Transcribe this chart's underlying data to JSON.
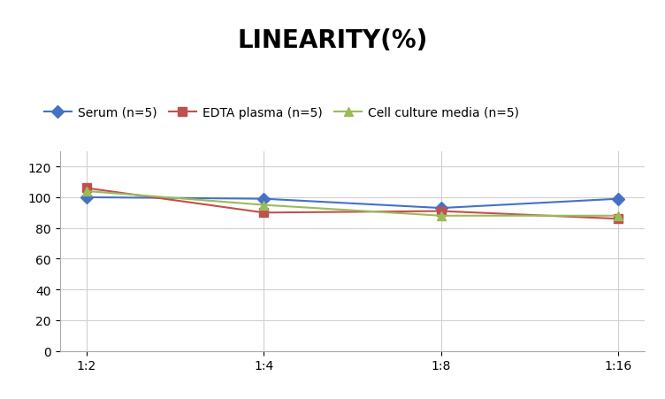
{
  "title": "LINEARITY(%)",
  "title_fontsize": 20,
  "title_fontweight": "bold",
  "x_labels": [
    "1:2",
    "1:4",
    "1:8",
    "1:16"
  ],
  "series": [
    {
      "label": "Serum (n=5)",
      "values": [
        100,
        99,
        93,
        99
      ],
      "color": "#4472C4",
      "marker": "D",
      "linewidth": 1.5
    },
    {
      "label": "EDTA plasma (n=5)",
      "values": [
        106,
        90,
        91,
        86
      ],
      "color": "#C0504D",
      "marker": "s",
      "linewidth": 1.5
    },
    {
      "label": "Cell culture media (n=5)",
      "values": [
        104,
        95,
        88,
        88
      ],
      "color": "#9BBB59",
      "marker": "^",
      "linewidth": 1.5
    }
  ],
  "ylim": [
    0,
    130
  ],
  "yticks": [
    0,
    20,
    40,
    60,
    80,
    100,
    120
  ],
  "background_color": "#ffffff",
  "grid_color": "#d0d0d0",
  "legend_fontsize": 10,
  "axis_fontsize": 10,
  "marker_size": 7
}
